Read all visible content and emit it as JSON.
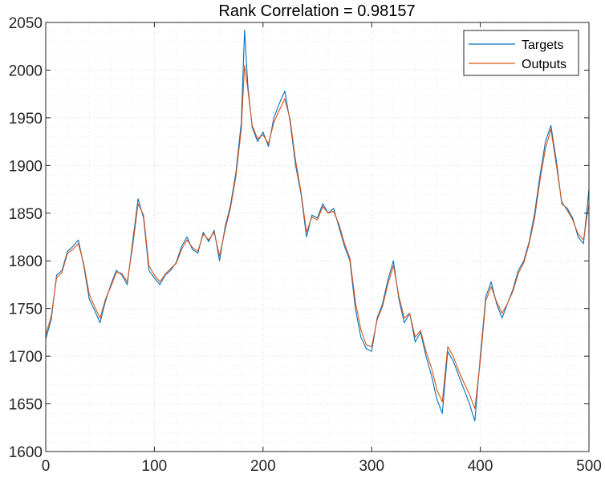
{
  "chart_data": {
    "type": "line",
    "title": "Rank Correlation = 0.98157",
    "xlabel": "",
    "ylabel": "",
    "xlim": [
      0,
      500
    ],
    "ylim": [
      1600,
      2050
    ],
    "x_ticks": [
      0,
      100,
      200,
      300,
      400,
      500
    ],
    "y_ticks": [
      1600,
      1650,
      1700,
      1750,
      1800,
      1850,
      1900,
      1950,
      2000,
      2050
    ],
    "grid": true,
    "minor_grid": true,
    "legend_position": "top-right",
    "series": [
      {
        "name": "Targets",
        "color": "#0072BD",
        "points": [
          [
            0,
            1718
          ],
          [
            5,
            1738
          ],
          [
            10,
            1785
          ],
          [
            15,
            1790
          ],
          [
            20,
            1810
          ],
          [
            25,
            1815
          ],
          [
            30,
            1822
          ],
          [
            35,
            1795
          ],
          [
            40,
            1760
          ],
          [
            45,
            1748
          ],
          [
            50,
            1735
          ],
          [
            55,
            1758
          ],
          [
            60,
            1775
          ],
          [
            65,
            1790
          ],
          [
            70,
            1785
          ],
          [
            75,
            1775
          ],
          [
            80,
            1820
          ],
          [
            85,
            1865
          ],
          [
            90,
            1845
          ],
          [
            95,
            1790
          ],
          [
            100,
            1782
          ],
          [
            105,
            1775
          ],
          [
            110,
            1785
          ],
          [
            115,
            1790
          ],
          [
            120,
            1798
          ],
          [
            125,
            1815
          ],
          [
            130,
            1825
          ],
          [
            135,
            1812
          ],
          [
            140,
            1808
          ],
          [
            145,
            1830
          ],
          [
            150,
            1820
          ],
          [
            155,
            1832
          ],
          [
            160,
            1800
          ],
          [
            165,
            1835
          ],
          [
            170,
            1858
          ],
          [
            175,
            1892
          ],
          [
            180,
            1945
          ],
          [
            183,
            2042
          ],
          [
            186,
            1985
          ],
          [
            190,
            1940
          ],
          [
            195,
            1925
          ],
          [
            200,
            1935
          ],
          [
            205,
            1920
          ],
          [
            210,
            1950
          ],
          [
            215,
            1965
          ],
          [
            220,
            1978
          ],
          [
            225,
            1945
          ],
          [
            230,
            1900
          ],
          [
            235,
            1870
          ],
          [
            240,
            1825
          ],
          [
            245,
            1848
          ],
          [
            250,
            1845
          ],
          [
            255,
            1860
          ],
          [
            260,
            1850
          ],
          [
            265,
            1855
          ],
          [
            270,
            1835
          ],
          [
            275,
            1815
          ],
          [
            280,
            1800
          ],
          [
            285,
            1750
          ],
          [
            290,
            1720
          ],
          [
            295,
            1708
          ],
          [
            300,
            1705
          ],
          [
            305,
            1740
          ],
          [
            310,
            1755
          ],
          [
            315,
            1780
          ],
          [
            320,
            1800
          ],
          [
            325,
            1760
          ],
          [
            330,
            1735
          ],
          [
            335,
            1745
          ],
          [
            340,
            1715
          ],
          [
            345,
            1725
          ],
          [
            350,
            1700
          ],
          [
            355,
            1680
          ],
          [
            360,
            1655
          ],
          [
            365,
            1640
          ],
          [
            370,
            1705
          ],
          [
            375,
            1695
          ],
          [
            380,
            1680
          ],
          [
            385,
            1665
          ],
          [
            390,
            1650
          ],
          [
            395,
            1632
          ],
          [
            400,
            1700
          ],
          [
            405,
            1762
          ],
          [
            410,
            1778
          ],
          [
            415,
            1755
          ],
          [
            420,
            1740
          ],
          [
            425,
            1755
          ],
          [
            430,
            1770
          ],
          [
            435,
            1790
          ],
          [
            440,
            1800
          ],
          [
            445,
            1820
          ],
          [
            450,
            1850
          ],
          [
            455,
            1890
          ],
          [
            460,
            1925
          ],
          [
            465,
            1942
          ],
          [
            470,
            1905
          ],
          [
            475,
            1860
          ],
          [
            480,
            1855
          ],
          [
            485,
            1845
          ],
          [
            490,
            1825
          ],
          [
            495,
            1818
          ],
          [
            500,
            1875
          ]
        ]
      },
      {
        "name": "Outputs",
        "color": "#D95319",
        "points": [
          [
            0,
            1722
          ],
          [
            5,
            1742
          ],
          [
            10,
            1782
          ],
          [
            15,
            1788
          ],
          [
            20,
            1808
          ],
          [
            25,
            1812
          ],
          [
            30,
            1818
          ],
          [
            35,
            1797
          ],
          [
            40,
            1765
          ],
          [
            45,
            1752
          ],
          [
            50,
            1740
          ],
          [
            55,
            1760
          ],
          [
            60,
            1773
          ],
          [
            65,
            1788
          ],
          [
            70,
            1787
          ],
          [
            75,
            1778
          ],
          [
            80,
            1815
          ],
          [
            85,
            1860
          ],
          [
            90,
            1848
          ],
          [
            95,
            1795
          ],
          [
            100,
            1785
          ],
          [
            105,
            1778
          ],
          [
            110,
            1786
          ],
          [
            115,
            1792
          ],
          [
            120,
            1797
          ],
          [
            125,
            1812
          ],
          [
            130,
            1822
          ],
          [
            135,
            1814
          ],
          [
            140,
            1810
          ],
          [
            145,
            1828
          ],
          [
            150,
            1822
          ],
          [
            155,
            1830
          ],
          [
            160,
            1805
          ],
          [
            165,
            1832
          ],
          [
            170,
            1855
          ],
          [
            175,
            1888
          ],
          [
            180,
            1938
          ],
          [
            183,
            2005
          ],
          [
            186,
            1980
          ],
          [
            190,
            1942
          ],
          [
            195,
            1928
          ],
          [
            200,
            1932
          ],
          [
            205,
            1923
          ],
          [
            210,
            1945
          ],
          [
            215,
            1958
          ],
          [
            220,
            1970
          ],
          [
            225,
            1948
          ],
          [
            230,
            1905
          ],
          [
            235,
            1872
          ],
          [
            240,
            1830
          ],
          [
            245,
            1846
          ],
          [
            250,
            1843
          ],
          [
            255,
            1857
          ],
          [
            260,
            1850
          ],
          [
            265,
            1852
          ],
          [
            270,
            1838
          ],
          [
            275,
            1818
          ],
          [
            280,
            1803
          ],
          [
            285,
            1757
          ],
          [
            290,
            1728
          ],
          [
            295,
            1712
          ],
          [
            300,
            1710
          ],
          [
            305,
            1738
          ],
          [
            310,
            1752
          ],
          [
            315,
            1776
          ],
          [
            320,
            1795
          ],
          [
            325,
            1763
          ],
          [
            330,
            1740
          ],
          [
            335,
            1745
          ],
          [
            340,
            1720
          ],
          [
            345,
            1727
          ],
          [
            350,
            1705
          ],
          [
            355,
            1688
          ],
          [
            360,
            1665
          ],
          [
            365,
            1652
          ],
          [
            370,
            1710
          ],
          [
            375,
            1700
          ],
          [
            380,
            1685
          ],
          [
            385,
            1672
          ],
          [
            390,
            1660
          ],
          [
            395,
            1645
          ],
          [
            400,
            1695
          ],
          [
            405,
            1758
          ],
          [
            410,
            1773
          ],
          [
            415,
            1757
          ],
          [
            420,
            1745
          ],
          [
            425,
            1755
          ],
          [
            430,
            1768
          ],
          [
            435,
            1787
          ],
          [
            440,
            1798
          ],
          [
            445,
            1818
          ],
          [
            450,
            1845
          ],
          [
            455,
            1885
          ],
          [
            460,
            1918
          ],
          [
            465,
            1938
          ],
          [
            470,
            1900
          ],
          [
            475,
            1862
          ],
          [
            480,
            1853
          ],
          [
            485,
            1843
          ],
          [
            490,
            1828
          ],
          [
            495,
            1822
          ],
          [
            500,
            1860
          ]
        ]
      }
    ]
  }
}
